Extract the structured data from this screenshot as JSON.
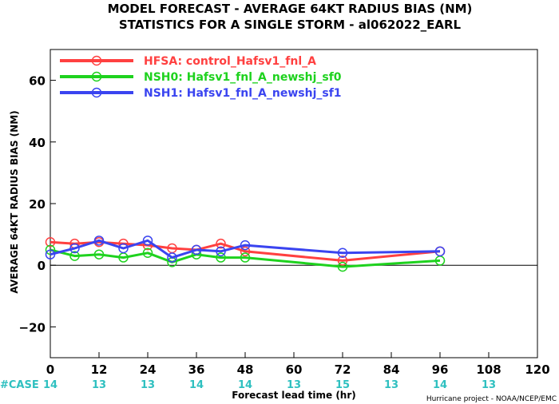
{
  "chart_data": {
    "type": "line",
    "title_line1": "MODEL FORECAST - AVERAGE 64KT RADIUS BIAS (NM)",
    "title_line2": "STATISTICS FOR A SINGLE STORM - al062022_EARL",
    "ylabel": "AVERAGE 64KT RADIUS BIAS (NM)",
    "xlabel": "Forecast lead time (hr)",
    "credit": "Hurricane project - NOAA/NCEP/EMC",
    "xlim": [
      0,
      120
    ],
    "ylim": [
      -30,
      70
    ],
    "x_ticks": [
      0,
      12,
      24,
      36,
      48,
      60,
      72,
      84,
      96,
      108,
      120
    ],
    "y_ticks": [
      -20,
      0,
      20,
      40,
      60
    ],
    "zero_line": true,
    "legend_position": "top-left",
    "case_label": "#CASE",
    "case_color": "#2fc0c0",
    "cases": [
      {
        "x": 0,
        "count": "14"
      },
      {
        "x": 12,
        "count": "13"
      },
      {
        "x": 24,
        "count": "13"
      },
      {
        "x": 36,
        "count": "14"
      },
      {
        "x": 48,
        "count": "14"
      },
      {
        "x": 60,
        "count": "13"
      },
      {
        "x": 72,
        "count": "15"
      },
      {
        "x": 84,
        "count": "13"
      },
      {
        "x": 96,
        "count": "14"
      },
      {
        "x": 108,
        "count": "13"
      }
    ],
    "series": [
      {
        "name": "HFSA: control_Hafsv1_fnl_A",
        "color": "#ff4040",
        "x": [
          0,
          6,
          12,
          18,
          24,
          30,
          36,
          42,
          48,
          72,
          96
        ],
        "values": [
          7.5,
          7.0,
          7.5,
          7.0,
          6.5,
          5.5,
          5.0,
          7.0,
          4.5,
          1.5,
          4.5
        ]
      },
      {
        "name": "NSH0: Hafsv1_fnl_A_newshj_sf0",
        "color": "#1ed21e",
        "x": [
          0,
          6,
          12,
          18,
          24,
          30,
          36,
          42,
          48,
          72,
          96
        ],
        "values": [
          5.0,
          3.0,
          3.5,
          2.5,
          4.0,
          1.0,
          3.5,
          2.5,
          2.5,
          -0.5,
          1.5
        ]
      },
      {
        "name": "NSH1: Hafsv1_fnl_A_newshj_sf1",
        "color": "#3a44f0",
        "x": [
          0,
          6,
          12,
          18,
          24,
          30,
          36,
          42,
          48,
          72,
          96
        ],
        "values": [
          3.5,
          5.5,
          8.0,
          5.5,
          8.0,
          2.5,
          5.0,
          4.5,
          6.5,
          4.0,
          4.5
        ]
      }
    ]
  }
}
